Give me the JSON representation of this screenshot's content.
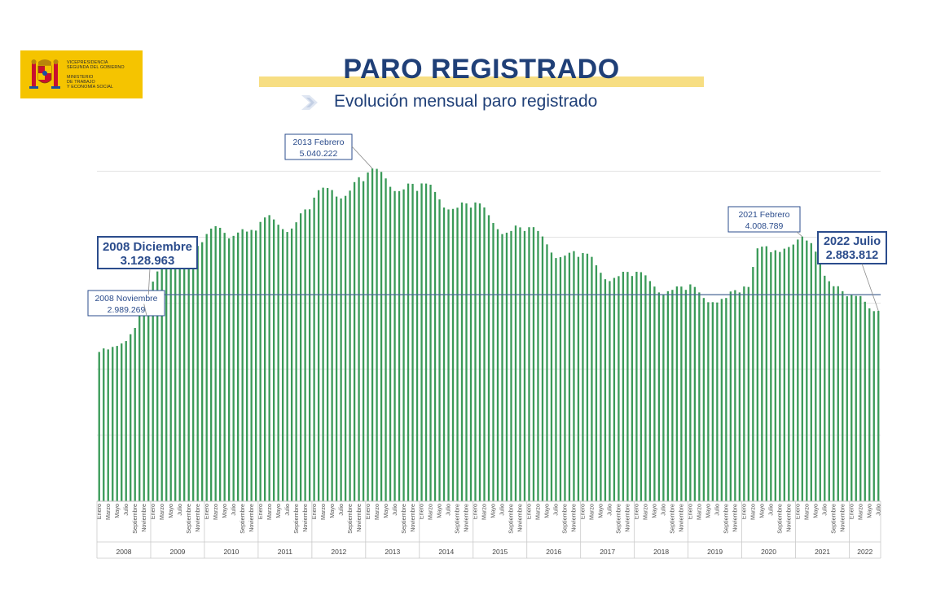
{
  "header": {
    "title": "PARO REGISTRADO",
    "subtitle": "Evolución mensual paro registrado",
    "logo_lines": [
      "VICEPRESIDENCIA",
      "SEGUNDA DEL GOBIERNO",
      "MINISTERIO",
      "DE TRABAJO",
      "Y ECONOMÍA SOCIAL"
    ]
  },
  "colors": {
    "bar": "#3a9a58",
    "grid": "#e3e3e3",
    "reference_line": "#4a6796",
    "annotation": "#2b4c8c",
    "title": "#1f3f77",
    "band": "#f7de83",
    "logo_bg": "#f5c400"
  },
  "chart_data": {
    "type": "bar",
    "title": "Evolución mensual paro registrado",
    "xlabel": "",
    "ylabel": "",
    "ylim": [
      0,
      5300000
    ],
    "grid": true,
    "start": "2008-01",
    "month_labels": [
      "Enero",
      "Marzo",
      "Mayo",
      "Julio",
      "Septiembre",
      "Noviembre"
    ],
    "years": [
      "2008",
      "2009",
      "2010",
      "2011",
      "2012",
      "2013",
      "2014",
      "2015",
      "2016",
      "2017",
      "2018",
      "2019",
      "2020",
      "2021",
      "2022"
    ],
    "reference_value": 3128963,
    "annotations": [
      {
        "label": "2008 Noviembre",
        "value_text": "2.989.269",
        "month": "2008-11",
        "value": 2989269
      },
      {
        "label": "2008 Diciembre",
        "value_text": "3.128.963",
        "month": "2008-12",
        "value": 3128963
      },
      {
        "label": "2013 Febrero",
        "value_text": "5.040.222",
        "month": "2013-02",
        "value": 5040222
      },
      {
        "label": "2021 Febrero",
        "value_text": "4.008.789",
        "month": "2021-02",
        "value": 4008789
      },
      {
        "label": "2022 Julio",
        "value_text": "2.883.812",
        "month": "2022-07",
        "value": 2883812
      }
    ],
    "values": [
      2261000,
      2315000,
      2300000,
      2338000,
      2353000,
      2390000,
      2427000,
      2530000,
      2625000,
      2818000,
      2989269,
      3128963,
      3327000,
      3481000,
      3605000,
      3645000,
      3620000,
      3564000,
      3545000,
      3629000,
      3709000,
      3808000,
      3868000,
      3924000,
      4048000,
      4130000,
      4167000,
      4142000,
      4066000,
      3982000,
      4020000,
      4070000,
      4121000,
      4085000,
      4110000,
      4100000,
      4231000,
      4299000,
      4334000,
      4269000,
      4189000,
      4122000,
      4079000,
      4131000,
      4226000,
      4361000,
      4420000,
      4422000,
      4599000,
      4712000,
      4750000,
      4745000,
      4714000,
      4615000,
      4587000,
      4626000,
      4705000,
      4834000,
      4908000,
      4848000,
      4980000,
      5040222,
      5035000,
      4989000,
      4890000,
      4763000,
      4699000,
      4698000,
      4724000,
      4812000,
      4808000,
      4701000,
      4814000,
      4812000,
      4795000,
      4685000,
      4572000,
      4449000,
      4420000,
      4428000,
      4447000,
      4526000,
      4512000,
      4448000,
      4526000,
      4512000,
      4451000,
      4333000,
      4215000,
      4121000,
      4047000,
      4068000,
      4094000,
      4176000,
      4149000,
      4094000,
      4151000,
      4152000,
      4094000,
      4011000,
      3891000,
      3767000,
      3684000,
      3697000,
      3721000,
      3764000,
      3789000,
      3702000,
      3760000,
      3750000,
      3702000,
      3574000,
      3461000,
      3363000,
      3335000,
      3383000,
      3410000,
      3476000,
      3474000,
      3412000,
      3476000,
      3470000,
      3422000,
      3335000,
      3252000,
      3163000,
      3135000,
      3182000,
      3202000,
      3254000,
      3252000,
      3202000,
      3285000,
      3246000,
      3163000,
      3079000,
      3015000,
      3016000,
      3011000,
      3065000,
      3079000,
      3177000,
      3198000,
      3163000,
      3253000,
      3246000,
      3549000,
      3831000,
      3857000,
      3863000,
      3773000,
      3802000,
      3776000,
      3826000,
      3851000,
      3888000,
      3964000,
      4008789,
      3949000,
      3910000,
      3781000,
      3614000,
      3416000,
      3333000,
      3257000,
      3257000,
      3182000,
      3105000,
      3124000,
      3111000,
      3108000,
      3022000,
      2922000,
      2880000,
      2883812
    ]
  }
}
